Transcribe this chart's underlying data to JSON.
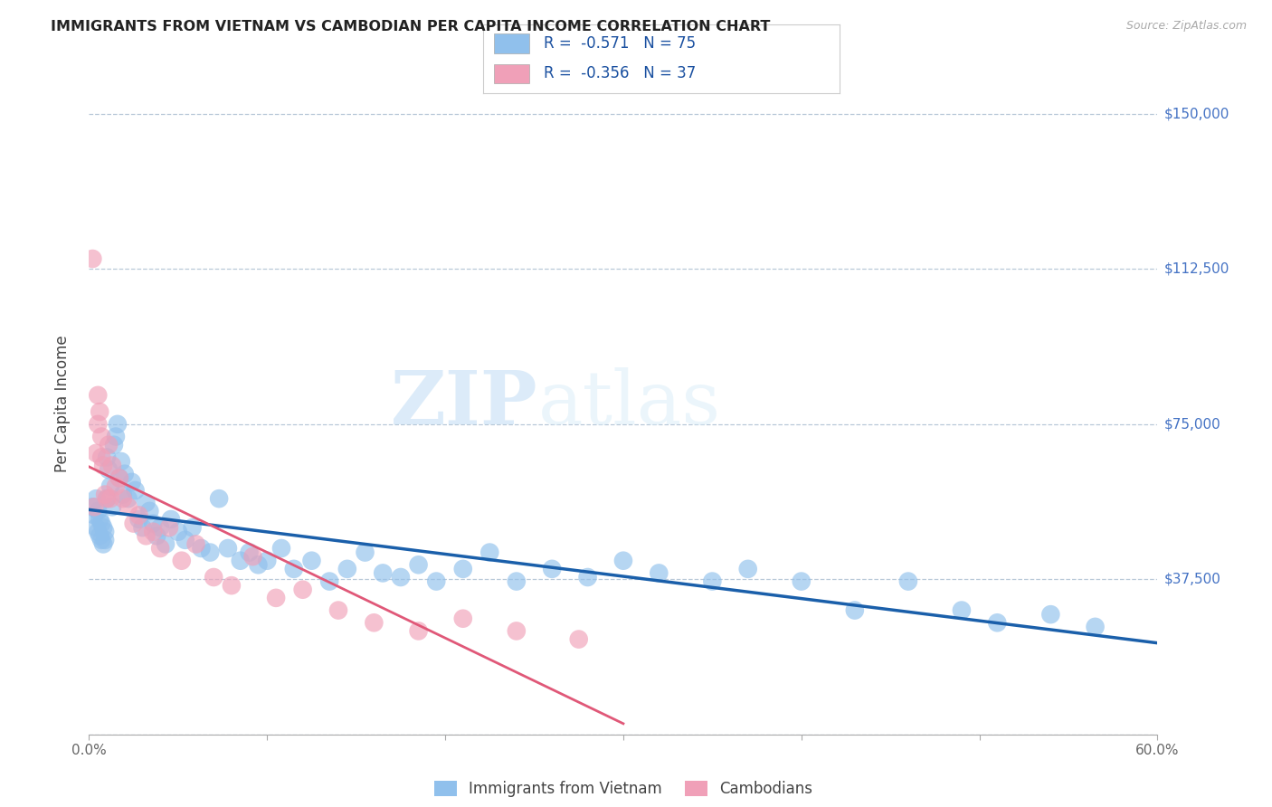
{
  "title": "IMMIGRANTS FROM VIETNAM VS CAMBODIAN PER CAPITA INCOME CORRELATION CHART",
  "source": "Source: ZipAtlas.com",
  "ylabel": "Per Capita Income",
  "xlim": [
    0.0,
    0.6
  ],
  "ylim": [
    0,
    160000
  ],
  "yticks": [
    0,
    37500,
    75000,
    112500,
    150000
  ],
  "ytick_labels": [
    "",
    "$37,500",
    "$75,000",
    "$112,500",
    "$150,000"
  ],
  "xticks": [
    0.0,
    0.1,
    0.2,
    0.3,
    0.4,
    0.5,
    0.6
  ],
  "xtick_labels": [
    "0.0%",
    "",
    "",
    "",
    "",
    "",
    "60.0%"
  ],
  "background_color": "#ffffff",
  "grid_color": "#b8c8d8",
  "watermark_zip": "ZIP",
  "watermark_atlas": "atlas",
  "blue_series": {
    "name": "Immigrants from Vietnam",
    "color": "#90c0ec",
    "line_color": "#1a5faa",
    "R": -0.571,
    "N": 75,
    "x": [
      0.002,
      0.003,
      0.004,
      0.004,
      0.005,
      0.005,
      0.006,
      0.006,
      0.007,
      0.007,
      0.008,
      0.008,
      0.009,
      0.009,
      0.01,
      0.01,
      0.011,
      0.012,
      0.013,
      0.014,
      0.015,
      0.016,
      0.017,
      0.018,
      0.019,
      0.02,
      0.022,
      0.024,
      0.026,
      0.028,
      0.03,
      0.032,
      0.034,
      0.036,
      0.038,
      0.04,
      0.043,
      0.046,
      0.05,
      0.054,
      0.058,
      0.063,
      0.068,
      0.073,
      0.078,
      0.085,
      0.09,
      0.095,
      0.1,
      0.108,
      0.115,
      0.125,
      0.135,
      0.145,
      0.155,
      0.165,
      0.175,
      0.185,
      0.195,
      0.21,
      0.225,
      0.24,
      0.26,
      0.28,
      0.3,
      0.32,
      0.35,
      0.37,
      0.4,
      0.43,
      0.46,
      0.49,
      0.51,
      0.54,
      0.565
    ],
    "y": [
      55000,
      53000,
      50000,
      57000,
      49000,
      54000,
      48000,
      52000,
      47000,
      51000,
      46000,
      50000,
      47000,
      49000,
      57000,
      67000,
      64000,
      60000,
      55000,
      70000,
      72000,
      75000,
      62000,
      66000,
      58000,
      63000,
      57000,
      61000,
      59000,
      52000,
      50000,
      56000,
      54000,
      51000,
      48000,
      50000,
      46000,
      52000,
      49000,
      47000,
      50000,
      45000,
      44000,
      57000,
      45000,
      42000,
      44000,
      41000,
      42000,
      45000,
      40000,
      42000,
      37000,
      40000,
      44000,
      39000,
      38000,
      41000,
      37000,
      40000,
      44000,
      37000,
      40000,
      38000,
      42000,
      39000,
      37000,
      40000,
      37000,
      30000,
      37000,
      30000,
      27000,
      29000,
      26000
    ]
  },
  "pink_series": {
    "name": "Cambodians",
    "color": "#f0a0b8",
    "line_color": "#e05878",
    "R": -0.356,
    "N": 37,
    "x": [
      0.002,
      0.003,
      0.004,
      0.005,
      0.005,
      0.006,
      0.007,
      0.007,
      0.008,
      0.009,
      0.01,
      0.011,
      0.012,
      0.013,
      0.015,
      0.017,
      0.019,
      0.022,
      0.025,
      0.028,
      0.032,
      0.036,
      0.04,
      0.045,
      0.052,
      0.06,
      0.07,
      0.08,
      0.092,
      0.105,
      0.12,
      0.14,
      0.16,
      0.185,
      0.21,
      0.24,
      0.275
    ],
    "y": [
      115000,
      55000,
      68000,
      75000,
      82000,
      78000,
      72000,
      67000,
      65000,
      58000,
      57000,
      70000,
      57000,
      65000,
      60000,
      62000,
      57000,
      55000,
      51000,
      53000,
      48000,
      49000,
      45000,
      50000,
      42000,
      46000,
      38000,
      36000,
      43000,
      33000,
      35000,
      30000,
      27000,
      25000,
      28000,
      25000,
      23000
    ]
  },
  "legend_entries": [
    {
      "label_r": "R = ",
      "label_val": "-0.571",
      "label_n": "  N = ",
      "label_nval": "75",
      "color": "#90c0ec"
    },
    {
      "label_r": "R = ",
      "label_val": "-0.356",
      "label_n": "  N = ",
      "label_nval": "37",
      "color": "#f0a0b8"
    }
  ],
  "title_color": "#222222",
  "axis_label_color": "#444444",
  "tick_color_right": "#4472c4",
  "tick_color_x": "#666666"
}
